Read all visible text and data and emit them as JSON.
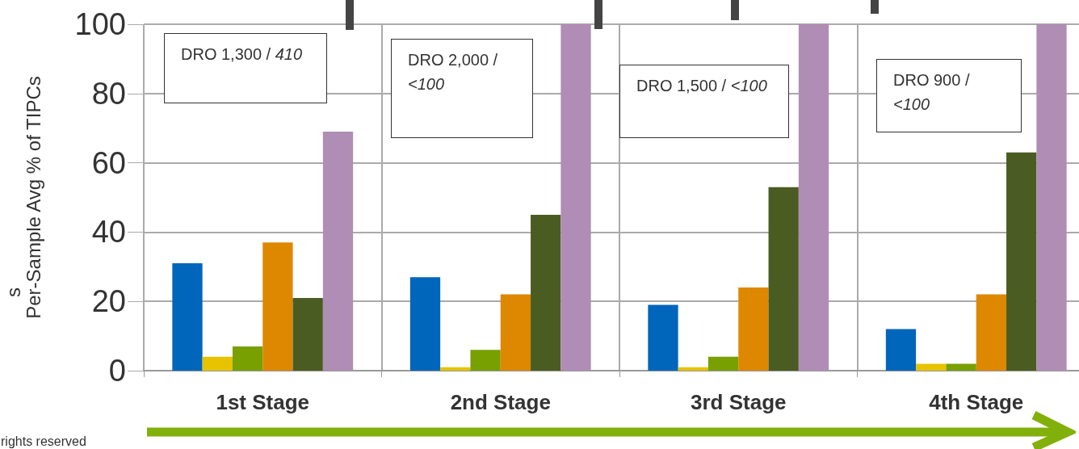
{
  "chart_data": {
    "type": "bar",
    "ylabel": "Per-Sample Avg % of TIPCs",
    "categories": [
      "1st Stage",
      "2nd Stage",
      "3rd Stage",
      "4th Stage"
    ],
    "series": [
      {
        "color": "#0066bb",
        "values": [
          31,
          27,
          19,
          12
        ]
      },
      {
        "color": "#e6c200",
        "values": [
          4,
          1,
          1,
          2
        ]
      },
      {
        "color": "#77a000",
        "values": [
          7,
          6,
          4,
          2
        ]
      },
      {
        "color": "#de8700",
        "values": [
          37,
          22,
          24,
          22
        ]
      },
      {
        "color": "#4a5c22",
        "values": [
          21,
          45,
          53,
          63
        ]
      },
      {
        "color": "#b08db5",
        "values": [
          69,
          100,
          100,
          100
        ]
      }
    ],
    "ylim": [
      0,
      100
    ],
    "yticks": [
      0,
      20,
      40,
      60,
      80,
      100
    ],
    "grid": true,
    "annotations": [
      "DRO 1,300 / 410",
      "DRO 2,000 / <100",
      "DRO 1,500 / <100",
      "DRO 900 / <100",
      "s",
      "rights reserved"
    ]
  }
}
